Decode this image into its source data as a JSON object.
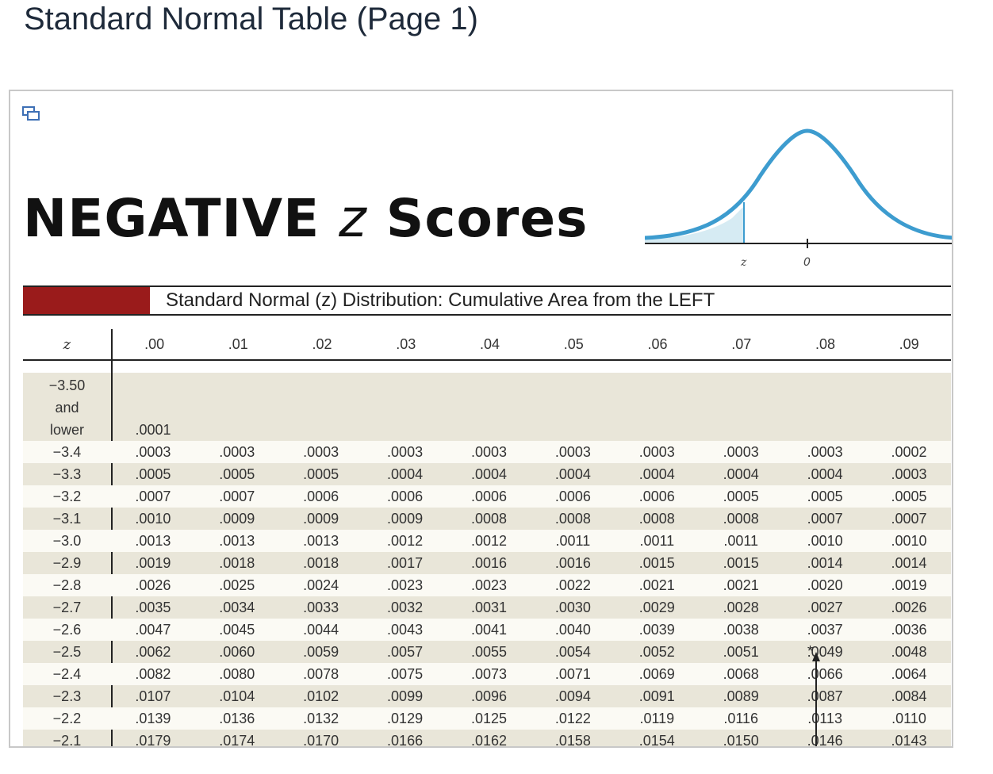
{
  "page": {
    "title": "Standard Normal Table (Page 1)"
  },
  "figure": {
    "heading_main": "NEGATIVE ",
    "heading_var": "z",
    "heading_tail": " Scores",
    "curve_labels": {
      "z": "z",
      "zero": "0"
    },
    "colors": {
      "banner": "#9a1b1b",
      "curve": "#3d9ccf",
      "shade": "#d6ebf3"
    }
  },
  "table": {
    "banner_title": "Standard Normal (z) Distribution: Cumulative Area from the LEFT",
    "z_header": "z",
    "columns": [
      ".00",
      ".01",
      ".02",
      ".03",
      ".04",
      ".05",
      ".06",
      ".07",
      ".08",
      ".09"
    ],
    "lower_label": [
      "−3.50",
      "and",
      "lower"
    ],
    "lower_value": ".0001",
    "marker_star": "*",
    "rows": [
      {
        "z": "−3.4",
        "v": [
          ".0003",
          ".0003",
          ".0003",
          ".0003",
          ".0003",
          ".0003",
          ".0003",
          ".0003",
          ".0003",
          ".0002"
        ]
      },
      {
        "z": "−3.3",
        "v": [
          ".0005",
          ".0005",
          ".0005",
          ".0004",
          ".0004",
          ".0004",
          ".0004",
          ".0004",
          ".0004",
          ".0003"
        ]
      },
      {
        "z": "−3.2",
        "v": [
          ".0007",
          ".0007",
          ".0006",
          ".0006",
          ".0006",
          ".0006",
          ".0006",
          ".0005",
          ".0005",
          ".0005"
        ]
      },
      {
        "z": "−3.1",
        "v": [
          ".0010",
          ".0009",
          ".0009",
          ".0009",
          ".0008",
          ".0008",
          ".0008",
          ".0008",
          ".0007",
          ".0007"
        ]
      },
      {
        "z": "−3.0",
        "v": [
          ".0013",
          ".0013",
          ".0013",
          ".0012",
          ".0012",
          ".0011",
          ".0011",
          ".0011",
          ".0010",
          ".0010"
        ]
      },
      {
        "z": "−2.9",
        "v": [
          ".0019",
          ".0018",
          ".0018",
          ".0017",
          ".0016",
          ".0016",
          ".0015",
          ".0015",
          ".0014",
          ".0014"
        ]
      },
      {
        "z": "−2.8",
        "v": [
          ".0026",
          ".0025",
          ".0024",
          ".0023",
          ".0023",
          ".0022",
          ".0021",
          ".0021",
          ".0020",
          ".0019"
        ]
      },
      {
        "z": "−2.7",
        "v": [
          ".0035",
          ".0034",
          ".0033",
          ".0032",
          ".0031",
          ".0030",
          ".0029",
          ".0028",
          ".0027",
          ".0026"
        ]
      },
      {
        "z": "−2.6",
        "v": [
          ".0047",
          ".0045",
          ".0044",
          ".0043",
          ".0041",
          ".0040",
          ".0039",
          ".0038",
          ".0037",
          ".0036"
        ]
      },
      {
        "z": "−2.5",
        "v": [
          ".0062",
          ".0060",
          ".0059",
          ".0057",
          ".0055",
          ".0054",
          ".0052",
          ".0051",
          ".0049",
          ".0048"
        ]
      },
      {
        "z": "−2.4",
        "v": [
          ".0082",
          ".0080",
          ".0078",
          ".0075",
          ".0073",
          ".0071",
          ".0069",
          ".0068",
          ".0066",
          ".0064"
        ]
      },
      {
        "z": "−2.3",
        "v": [
          ".0107",
          ".0104",
          ".0102",
          ".0099",
          ".0096",
          ".0094",
          ".0091",
          ".0089",
          ".0087",
          ".0084"
        ]
      },
      {
        "z": "−2.2",
        "v": [
          ".0139",
          ".0136",
          ".0132",
          ".0129",
          ".0125",
          ".0122",
          ".0119",
          ".0116",
          ".0113",
          ".0110"
        ]
      },
      {
        "z": "−2.1",
        "v": [
          ".0179",
          ".0174",
          ".0170",
          ".0166",
          ".0162",
          ".0158",
          ".0154",
          ".0150",
          ".0146",
          ".0143"
        ]
      }
    ]
  }
}
